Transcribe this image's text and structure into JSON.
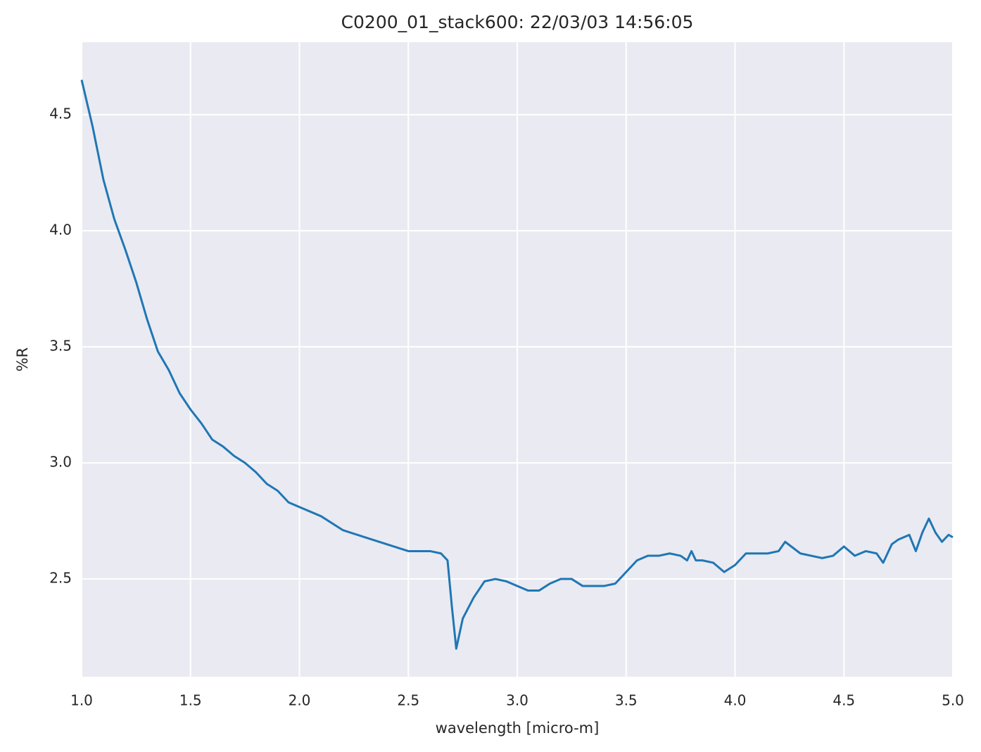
{
  "chart_data": {
    "type": "line",
    "title": "C0200_01_stack600:  22/03/03 14:56:05",
    "x_label": "wavelength [micro-m]",
    "y_label": "%R",
    "xlim": [
      1.0,
      5.0
    ],
    "ylim": [
      2.079,
      4.812
    ],
    "xticks": [
      {
        "value": 1,
        "label": "1.0"
      },
      1.5,
      {
        "value": 2,
        "label": "2.0"
      },
      2.5,
      {
        "value": 3,
        "label": "3.0"
      },
      3.5,
      {
        "value": 4,
        "label": "4.0"
      },
      4.5,
      {
        "value": 5,
        "label": "5.0"
      }
    ],
    "yticks": [
      2.5,
      {
        "value": 3,
        "label": "3.0"
      },
      3.5,
      {
        "value": 4,
        "label": "4.0"
      },
      4.5
    ],
    "grid": true,
    "x": [
      1.0,
      1.05,
      1.1,
      1.15,
      1.2,
      1.25,
      1.3,
      1.35,
      1.4,
      1.45,
      1.5,
      1.55,
      1.6,
      1.65,
      1.7,
      1.75,
      1.8,
      1.85,
      1.9,
      1.95,
      2.0,
      2.1,
      2.2,
      2.3,
      2.4,
      2.5,
      2.6,
      2.65,
      2.68,
      2.7,
      2.72,
      2.75,
      2.8,
      2.85,
      2.9,
      2.95,
      3.0,
      3.05,
      3.1,
      3.15,
      3.2,
      3.25,
      3.3,
      3.35,
      3.4,
      3.45,
      3.5,
      3.55,
      3.6,
      3.65,
      3.7,
      3.75,
      3.78,
      3.8,
      3.82,
      3.85,
      3.9,
      3.95,
      4.0,
      4.05,
      4.1,
      4.15,
      4.2,
      4.23,
      4.3,
      4.35,
      4.4,
      4.45,
      4.5,
      4.55,
      4.6,
      4.65,
      4.68,
      4.72,
      4.75,
      4.8,
      4.83,
      4.86,
      4.89,
      4.92,
      4.95,
      4.98,
      5.0
    ],
    "series": [
      {
        "name": "%R",
        "color": "#1f77b4",
        "values": [
          4.65,
          4.45,
          4.22,
          4.05,
          3.92,
          3.78,
          3.62,
          3.48,
          3.4,
          3.3,
          3.23,
          3.17,
          3.1,
          3.07,
          3.03,
          3.0,
          2.96,
          2.91,
          2.88,
          2.83,
          2.81,
          2.77,
          2.71,
          2.68,
          2.65,
          2.62,
          2.62,
          2.61,
          2.58,
          2.38,
          2.2,
          2.33,
          2.42,
          2.49,
          2.5,
          2.49,
          2.47,
          2.45,
          2.45,
          2.48,
          2.5,
          2.5,
          2.47,
          2.47,
          2.47,
          2.48,
          2.53,
          2.58,
          2.6,
          2.6,
          2.61,
          2.6,
          2.58,
          2.62,
          2.58,
          2.58,
          2.57,
          2.53,
          2.56,
          2.61,
          2.61,
          2.61,
          2.62,
          2.66,
          2.61,
          2.6,
          2.59,
          2.6,
          2.64,
          2.6,
          2.62,
          2.61,
          2.57,
          2.65,
          2.67,
          2.69,
          2.62,
          2.7,
          2.76,
          2.7,
          2.66,
          2.69,
          2.68
        ]
      }
    ]
  }
}
